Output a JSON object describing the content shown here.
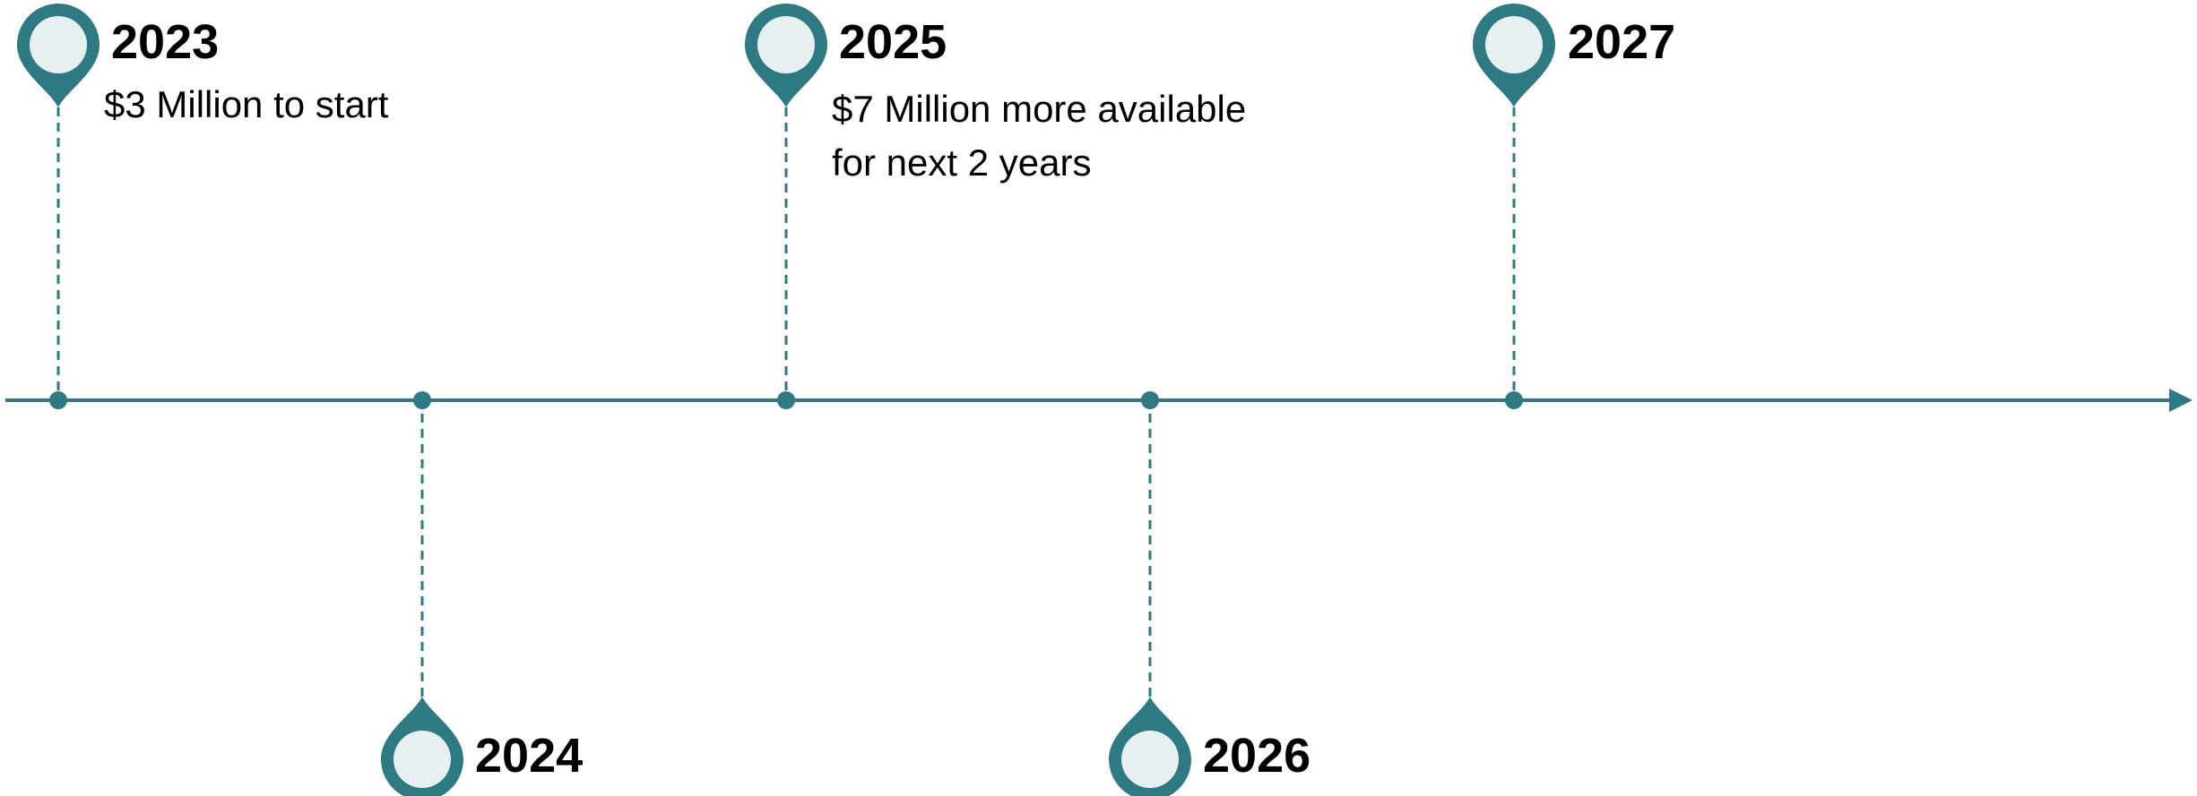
{
  "colors": {
    "accent": "#2e7a82",
    "pin_fill": "#e8eff0",
    "text": "#000000"
  },
  "milestones": [
    {
      "year": "2023",
      "note": "$3 Million to start",
      "side": "above"
    },
    {
      "year": "2024",
      "note": "",
      "side": "below"
    },
    {
      "year": "2025",
      "note": "$7 Million more available\nfor next 2 years",
      "side": "above"
    },
    {
      "year": "2026",
      "note": "",
      "side": "below"
    },
    {
      "year": "2027",
      "note": "",
      "side": "above"
    }
  ],
  "axis": {
    "arrow_direction": "right",
    "connector_style": "dashed"
  }
}
